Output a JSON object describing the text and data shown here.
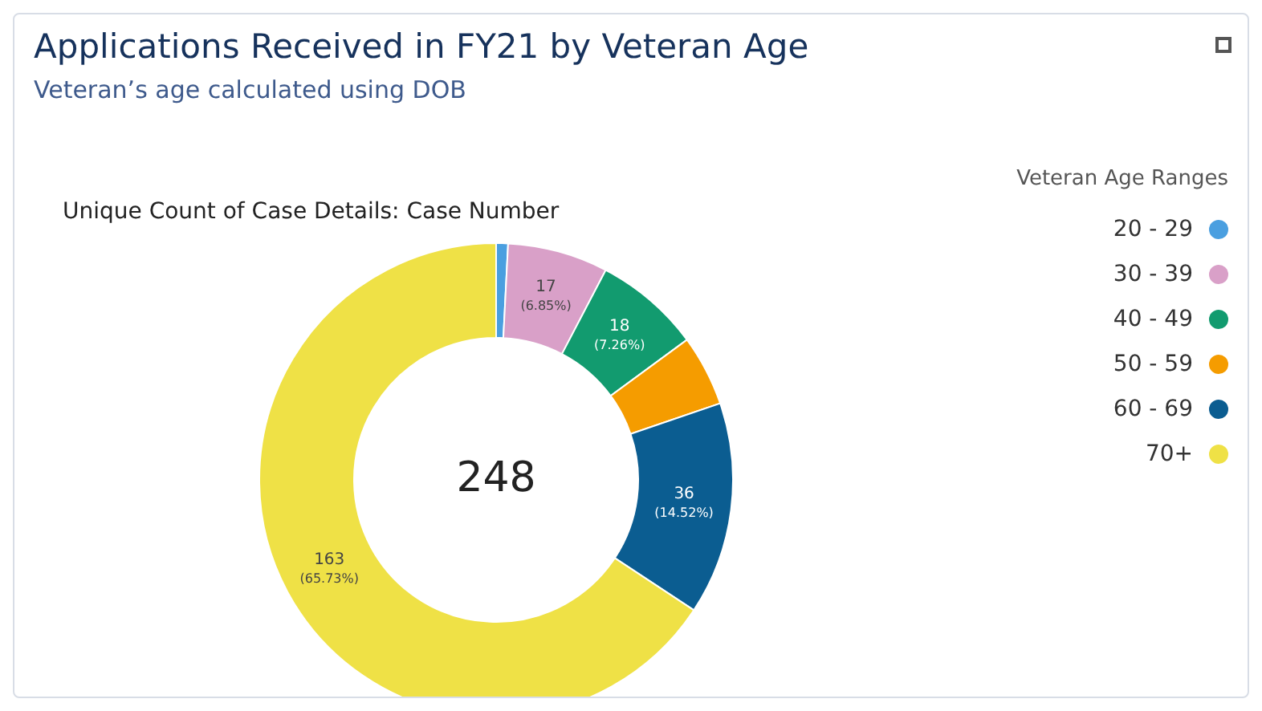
{
  "chart_data": {
    "type": "donut",
    "title": "Applications Received in FY21 by Veteran Age",
    "subtitle": "Veteran’s age calculated using DOB",
    "annotations": [
      "Unique Count of Case Details: Case Number",
      "248"
    ],
    "legend_title": "Veteran Age Ranges",
    "legend": "right",
    "categories": [
      "20 - 29",
      "30 - 39",
      "40 - 49",
      "50 - 59",
      "60 - 69",
      "70+"
    ],
    "values": [
      2,
      17,
      18,
      12,
      36,
      163
    ],
    "colors": [
      "#4a9fe0",
      "#d9a0c8",
      "#129b6f",
      "#f59c00",
      "#0b5d91",
      "#efe146"
    ],
    "value_labels": [
      null,
      "17 (6.85%)",
      "18 (7.26%)",
      null,
      "36 (14.52%)",
      "163 (65.73%)"
    ]
  }
}
